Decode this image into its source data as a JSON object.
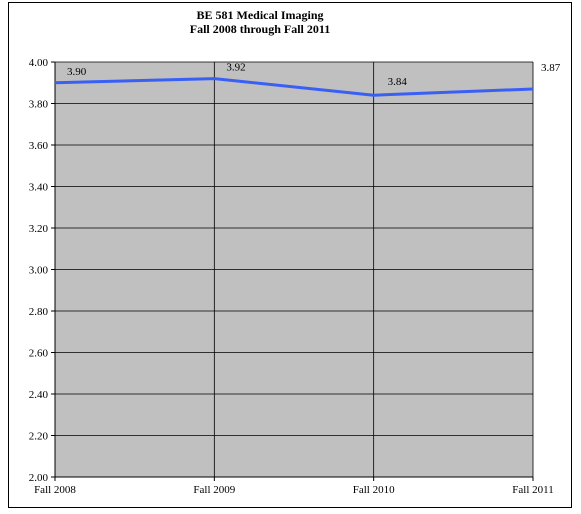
{
  "chart_data": {
    "type": "line",
    "title": "BE 581 Medical Imaging",
    "subtitle": "Fall 2008 through Fall 2011",
    "categories": [
      "Fall 2008",
      "Fall 2009",
      "Fall 2010",
      "Fall 2011"
    ],
    "series": [
      {
        "values": [
          3.9,
          3.92,
          3.84,
          3.87
        ],
        "color": "#3a5ff5"
      }
    ],
    "data_labels": [
      "3.90",
      "3.92",
      "3.84",
      "3.87"
    ],
    "y_ticks": [
      "2.00",
      "2.20",
      "2.40",
      "2.60",
      "2.80",
      "3.00",
      "3.20",
      "3.40",
      "3.60",
      "3.80",
      "4.00"
    ],
    "ylim": [
      2.0,
      4.0
    ],
    "grid": true,
    "plot_background": "#c0c0c0",
    "legend": "none"
  }
}
